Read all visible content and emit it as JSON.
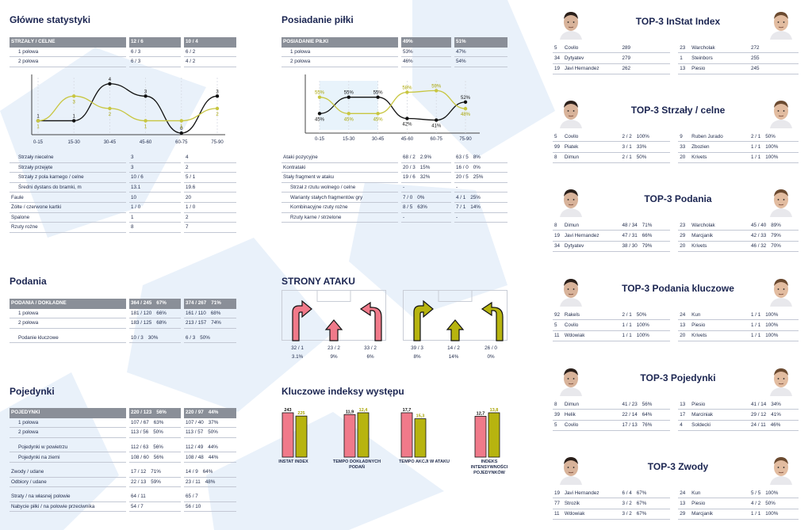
{
  "colors": {
    "navy": "#1b2551",
    "pink": "#f07a8a",
    "olive": "#b7b40f",
    "grey": "#8a8f98",
    "line_black": "#111111",
    "line_olive": "#c8c640"
  },
  "glowne": {
    "title": "Główne statystyki",
    "header": {
      "label": "STRZAŁY / CELNE",
      "a": "12 / 6",
      "b": "10 / 4"
    },
    "rows_top": [
      {
        "label": "1 połowa",
        "a": "6 / 3",
        "b": "6 / 2",
        "indent": true
      },
      {
        "label": "2 połowa",
        "a": "6 / 3",
        "b": "4 / 2",
        "indent": true
      }
    ],
    "rows_bottom": [
      {
        "label": "Strzały niecelne",
        "a": "3",
        "b": "4",
        "indent": true
      },
      {
        "label": "Strzały przejęte",
        "a": "3",
        "b": "2",
        "indent": true
      },
      {
        "label": "Strzały z pola karnego / celne",
        "a": "10 / 6",
        "b": "5 / 1",
        "indent": true
      },
      {
        "label": "Średni dystans do bramki, m",
        "a": "13.1",
        "b": "19.6",
        "indent": true
      },
      {
        "label": "Faule",
        "a": "10",
        "b": "20",
        "indent": false
      },
      {
        "label": "Żółte / czerwone kartki",
        "a": "1 / 0",
        "b": "1 / 0",
        "indent": false
      },
      {
        "label": "Spalone",
        "a": "1",
        "b": "2",
        "indent": false
      },
      {
        "label": "Rzuty rożne",
        "a": "8",
        "b": "7",
        "indent": false
      }
    ]
  },
  "chart_shots": {
    "type": "line",
    "categories": [
      "0-15",
      "15-30",
      "30-45",
      "45-60",
      "60-75",
      "75-90"
    ],
    "series": [
      {
        "color": "#111111",
        "values": [
          1,
          1,
          4,
          3,
          0,
          3
        ]
      },
      {
        "color": "#c8c640",
        "values": [
          1,
          3,
          2,
          1,
          1,
          2
        ]
      }
    ],
    "ylim": [
      0,
      4.5
    ]
  },
  "posiadanie": {
    "title": "Posiadanie piłki",
    "header": {
      "label": "POSIADANIE PIŁKI",
      "a": "49%",
      "b": "51%"
    },
    "rows_top": [
      {
        "label": "1 połowa",
        "a": "53%",
        "b": "47%",
        "indent": true
      },
      {
        "label": "2 połowa",
        "a": "46%",
        "b": "54%",
        "indent": true
      }
    ],
    "rows_bottom": [
      {
        "label": "Ataki pozycyjne",
        "a": "68 / 2",
        "ap": "2.9%",
        "b": "63 / 5",
        "bp": "8%",
        "indent": false
      },
      {
        "label": "Kontrataki",
        "a": "20 / 3",
        "ap": "15%",
        "b": "16 / 0",
        "bp": "0%",
        "indent": false
      },
      {
        "label": "Stały fragment w ataku",
        "a": "19 / 6",
        "ap": "32%",
        "b": "20 / 5",
        "bp": "25%",
        "indent": false
      },
      {
        "label": "Strzał z rzutu wolnego / celne",
        "a": "-",
        "ap": "",
        "b": "-",
        "bp": "",
        "indent": true
      },
      {
        "label": "Warianty stałych fragmentów gry",
        "a": "7 / 0",
        "ap": "0%",
        "b": "4 / 1",
        "bp": "25%",
        "indent": true
      },
      {
        "label": "Kombinacyjne rzuty rożne",
        "a": "8 / 5",
        "ap": "63%",
        "b": "7 / 1",
        "bp": "14%",
        "indent": true
      },
      {
        "label": "Rzuty karne / strzelone",
        "a": "-",
        "ap": "",
        "b": "-",
        "bp": "",
        "indent": true
      }
    ]
  },
  "chart_possession": {
    "type": "line",
    "categories": [
      "0-15",
      "15-30",
      "30-45",
      "45-60",
      "60-75",
      "75-90"
    ],
    "series": [
      {
        "color": "#111111",
        "values": [
          45,
          55,
          55,
          42,
          41,
          52
        ],
        "labels": [
          "45%",
          "55%",
          "55%",
          "42%",
          "41%",
          "52%"
        ]
      },
      {
        "color": "#c8c640",
        "values": [
          55,
          45,
          45,
          58,
          59,
          48
        ],
        "labels": [
          "55%",
          "45%",
          "45%",
          "58%",
          "59%",
          "48%"
        ]
      }
    ],
    "ylim": [
      35,
      65
    ]
  },
  "podania": {
    "title": "Podania",
    "header": {
      "label": "PODANIA / DOKŁADNE",
      "a": "364 / 245",
      "ap": "67%",
      "b": "374 / 267",
      "bp": "71%"
    },
    "rows": [
      {
        "label": "1 połowa",
        "a": "181 / 120",
        "ap": "66%",
        "b": "161 / 110",
        "bp": "68%",
        "indent": true
      },
      {
        "label": "2 połowa",
        "a": "183 / 125",
        "ap": "68%",
        "b": "213 / 157",
        "bp": "74%",
        "indent": true
      },
      {
        "label": "Podanie kluczowe",
        "a": "10 / 3",
        "ap": "30%",
        "b": "6 / 3",
        "bp": "50%",
        "indent": true
      }
    ]
  },
  "pojedynki": {
    "title": "Pojedynki",
    "header": {
      "label": "POJEDYNKI",
      "a": "220 / 123",
      "ap": "56%",
      "b": "220 / 97",
      "bp": "44%"
    },
    "rows": [
      {
        "label": "1 połowa",
        "a": "107 / 67",
        "ap": "63%",
        "b": "107 / 40",
        "bp": "37%",
        "indent": true
      },
      {
        "label": "2 połowa",
        "a": "113 / 56",
        "ap": "50%",
        "b": "113 / 57",
        "bp": "50%",
        "indent": true
      },
      {
        "label": "Pojedynki w powietrzu",
        "a": "112 / 63",
        "ap": "56%",
        "b": "112 / 49",
        "bp": "44%",
        "indent": true
      },
      {
        "label": "Pojedynki na ziemi",
        "a": "108 / 60",
        "ap": "56%",
        "b": "108 / 48",
        "bp": "44%",
        "indent": true
      },
      {
        "label": "Zwody / udane",
        "a": "17 / 12",
        "ap": "71%",
        "b": "14 / 9",
        "bp": "64%",
        "indent": false
      },
      {
        "label": "Odbiory / udane",
        "a": "22 / 13",
        "ap": "59%",
        "b": "23 / 11",
        "bp": "48%",
        "indent": false
      },
      {
        "label": "Straty / na własnej połowie",
        "a": "64 / 11",
        "ap": "",
        "b": "65 / 7",
        "bp": "",
        "indent": false
      },
      {
        "label": "Nabycie piłki / na połowie przeciwnika",
        "a": "54 / 7",
        "ap": "",
        "b": "56 / 10",
        "bp": "",
        "indent": false
      }
    ]
  },
  "strony": {
    "title": "STRONY ATAKU",
    "left": [
      {
        "a": "32 / 1",
        "b": "3.1%"
      },
      {
        "a": "23 / 2",
        "b": "9%"
      },
      {
        "a": "33 / 2",
        "b": "6%"
      }
    ],
    "right": [
      {
        "a": "39 / 3",
        "b": "8%"
      },
      {
        "a": "14 / 2",
        "b": "14%"
      },
      {
        "a": "26 / 0",
        "b": "0%"
      }
    ]
  },
  "kluczowe": {
    "title": "Kluczowe indeksy występu",
    "chart_data": {
      "type": "bar",
      "groups": [
        {
          "label": "INSTAT INDEX",
          "values": [
            243,
            225
          ],
          "value_labels": [
            "243",
            "225"
          ]
        },
        {
          "label": "TEMPO DOKŁADNYCH PODAŃ",
          "values": [
            11.9,
            12.4
          ],
          "value_labels": [
            "11,9",
            "12,4"
          ]
        },
        {
          "label": "TEMPO AKCJI W ATAKU",
          "values": [
            17.7,
            15.3
          ],
          "value_labels": [
            "17,7",
            "15,3"
          ]
        },
        {
          "label": "INDEKS INTENSYWNOŚCI POJEDYNKÓW",
          "values": [
            12.7,
            13.8
          ],
          "value_labels": [
            "12,7",
            "13,8"
          ]
        }
      ],
      "colors": [
        "#f07a8a",
        "#b7b40f"
      ]
    }
  },
  "top3": [
    {
      "title": "TOP-3 InStat Index",
      "left": [
        [
          "5",
          "Covilo",
          "289"
        ],
        [
          "34",
          "Dytyatev",
          "279"
        ],
        [
          "19",
          "Javi Hernandez",
          "262"
        ]
      ],
      "right": [
        [
          "23",
          "Warcholak",
          "272"
        ],
        [
          "1",
          "Steinbors",
          "255"
        ],
        [
          "13",
          "Piesio",
          "245"
        ]
      ]
    },
    {
      "title": "TOP-3 Strzały / celne",
      "left": [
        [
          "5",
          "Covilo",
          "2 / 2",
          "100%"
        ],
        [
          "99",
          "Piatek",
          "3 / 1",
          "33%"
        ],
        [
          "8",
          "Dimun",
          "2 / 1",
          "50%"
        ]
      ],
      "right": [
        [
          "9",
          "Ruben Jurado",
          "2 / 1",
          "50%"
        ],
        [
          "33",
          "Zbozien",
          "1 / 1",
          "100%"
        ],
        [
          "20",
          "Krivets",
          "1 / 1",
          "100%"
        ]
      ]
    },
    {
      "title": "TOP-3 Podania",
      "left": [
        [
          "8",
          "Dimun",
          "48 / 34",
          "71%"
        ],
        [
          "19",
          "Javi Hernandez",
          "47 / 31",
          "66%"
        ],
        [
          "34",
          "Dytyatev",
          "38 / 30",
          "79%"
        ]
      ],
      "right": [
        [
          "23",
          "Warcholak",
          "45 / 40",
          "89%"
        ],
        [
          "29",
          "Marcjanik",
          "42 / 33",
          "79%"
        ],
        [
          "20",
          "Krivets",
          "46 / 32",
          "70%"
        ]
      ]
    },
    {
      "title": "TOP-3 Podania kluczowe",
      "left": [
        [
          "92",
          "Rakels",
          "2 / 1",
          "50%"
        ],
        [
          "5",
          "Covilo",
          "1 / 1",
          "100%"
        ],
        [
          "11",
          "Wdowiak",
          "1 / 1",
          "100%"
        ]
      ],
      "right": [
        [
          "24",
          "Kun",
          "1 / 1",
          "100%"
        ],
        [
          "13",
          "Piesio",
          "1 / 1",
          "100%"
        ],
        [
          "20",
          "Krivets",
          "1 / 1",
          "100%"
        ]
      ]
    },
    {
      "title": "TOP-3 Pojedynki",
      "left": [
        [
          "8",
          "Dimun",
          "41 / 23",
          "56%"
        ],
        [
          "39",
          "Helik",
          "22 / 14",
          "64%"
        ],
        [
          "5",
          "Covilo",
          "17 / 13",
          "76%"
        ]
      ],
      "right": [
        [
          "13",
          "Piesio",
          "41 / 14",
          "34%"
        ],
        [
          "17",
          "Marciniak",
          "29 / 12",
          "41%"
        ],
        [
          "4",
          "Soldecki",
          "24 / 11",
          "46%"
        ]
      ]
    },
    {
      "title": "TOP-3 Zwody",
      "left": [
        [
          "19",
          "Javi Hernandez",
          "6 / 4",
          "67%"
        ],
        [
          "77",
          "Strozik",
          "3 / 2",
          "67%"
        ],
        [
          "11",
          "Wdowiak",
          "3 / 2",
          "67%"
        ]
      ],
      "right": [
        [
          "24",
          "Kun",
          "5 / 5",
          "100%"
        ],
        [
          "13",
          "Piesio",
          "4 / 2",
          "50%"
        ],
        [
          "29",
          "Marcjanik",
          "1 / 1",
          "100%"
        ]
      ]
    }
  ]
}
